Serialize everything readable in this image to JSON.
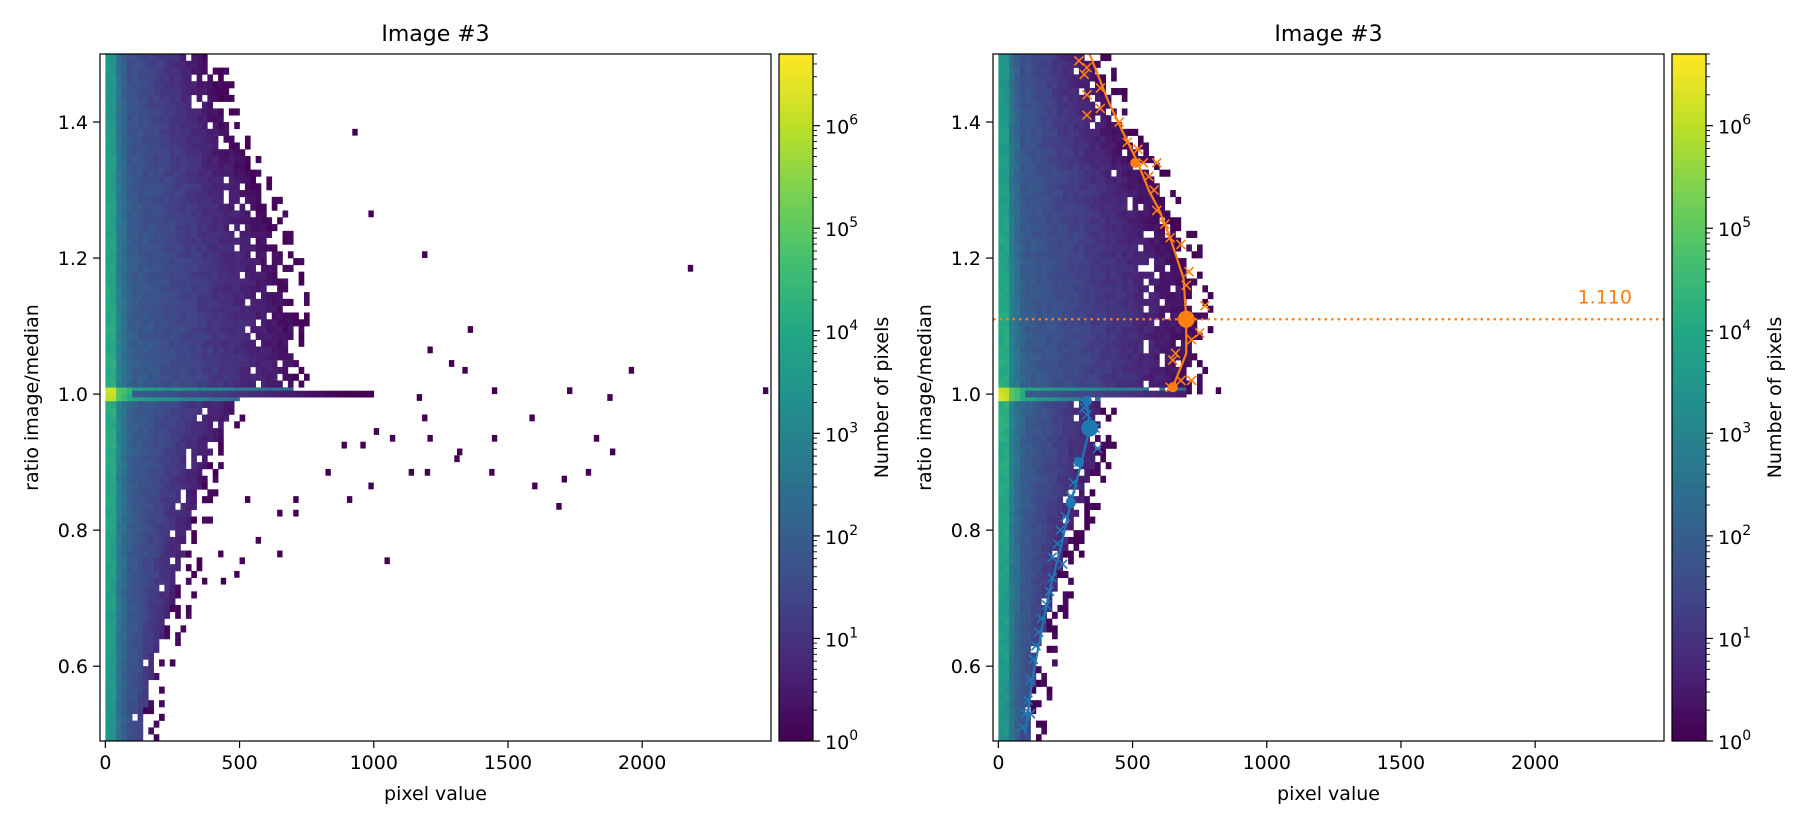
{
  "figure": {
    "panels": [
      {
        "title": "Image #3"
      },
      {
        "title": "Image #3"
      }
    ]
  },
  "chart_data": [
    {
      "type": "heatmap",
      "title": "Image #3",
      "xlabel": "pixel value",
      "ylabel": "ratio image/median",
      "xlim": [
        -20,
        2480
      ],
      "ylim": [
        0.49,
        1.5
      ],
      "xticks": [
        0,
        500,
        1000,
        1500,
        2000
      ],
      "yticks": [
        0.6,
        0.8,
        1.0,
        1.2,
        1.4
      ],
      "ytick_labels": [
        "0.6",
        "0.8",
        "1.0",
        "1.2",
        "1.4"
      ],
      "colorbar": {
        "label": "Number of pixels",
        "scale": "log",
        "range": [
          1,
          5000000
        ],
        "cmap": "viridis",
        "ticks": [
          {
            "base": "10",
            "exp": "0"
          },
          {
            "base": "10",
            "exp": "1"
          },
          {
            "base": "10",
            "exp": "2"
          },
          {
            "base": "10",
            "exp": "3"
          },
          {
            "base": "10",
            "exp": "4"
          },
          {
            "base": "10",
            "exp": "5"
          },
          {
            "base": "10",
            "exp": "6"
          }
        ]
      },
      "density": {
        "ridge_value_above": [
          [
            1.0,
            700
          ],
          [
            1.1,
            700
          ],
          [
            1.2,
            660
          ],
          [
            1.3,
            570
          ],
          [
            1.4,
            450
          ],
          [
            1.5,
            370
          ]
        ],
        "ridge_value_below": [
          [
            0.5,
            130
          ],
          [
            0.6,
            180
          ],
          [
            0.7,
            260
          ],
          [
            0.8,
            310
          ],
          [
            0.9,
            380
          ],
          [
            1.0,
            500
          ]
        ],
        "peak_ratio": 1.0,
        "isolated_bins": [
          [
            920,
            1.38
          ],
          [
            980,
            1.26
          ],
          [
            1180,
            1.2
          ],
          [
            2170,
            1.18
          ],
          [
            1350,
            1.09
          ],
          [
            1200,
            1.06
          ],
          [
            1280,
            1.04
          ],
          [
            1950,
            1.03
          ],
          [
            1330,
            1.03
          ],
          [
            1160,
            0.99
          ],
          [
            1440,
            1.0
          ],
          [
            1720,
            1.0
          ],
          [
            1870,
            0.99
          ],
          [
            2450,
            1.0
          ],
          [
            1000,
            0.94
          ],
          [
            1060,
            0.93
          ],
          [
            1180,
            0.96
          ],
          [
            1200,
            0.93
          ],
          [
            1310,
            0.91
          ],
          [
            1440,
            0.93
          ],
          [
            1580,
            0.96
          ],
          [
            1820,
            0.93
          ],
          [
            1880,
            0.91
          ],
          [
            1300,
            0.9
          ],
          [
            1130,
            0.88
          ],
          [
            1190,
            0.88
          ],
          [
            1430,
            0.88
          ],
          [
            1700,
            0.87
          ],
          [
            1590,
            0.86
          ],
          [
            1790,
            0.88
          ],
          [
            1680,
            0.83
          ],
          [
            1040,
            0.75
          ],
          [
            980,
            0.86
          ],
          [
            950,
            0.92
          ],
          [
            880,
            0.92
          ],
          [
            900,
            0.84
          ],
          [
            820,
            0.88
          ],
          [
            700,
            0.84
          ],
          [
            640,
            0.82
          ],
          [
            560,
            0.78
          ],
          [
            520,
            0.84
          ],
          [
            500,
            0.75
          ],
          [
            480,
            0.73
          ],
          [
            420,
            0.76
          ],
          [
            430,
            0.72
          ],
          [
            360,
            0.72
          ],
          [
            320,
            0.81
          ],
          [
            700,
            0.82
          ],
          [
            640,
            0.76
          ]
        ]
      }
    },
    {
      "type": "heatmap",
      "title": "Image #3",
      "xlabel": "pixel value",
      "ylabel": "ratio image/median",
      "xlim": [
        -20,
        2480
      ],
      "ylim": [
        0.49,
        1.5
      ],
      "xticks": [
        0,
        500,
        1000,
        1500,
        2000
      ],
      "yticks": [
        0.6,
        0.8,
        1.0,
        1.2,
        1.4
      ],
      "ytick_labels": [
        "0.6",
        "0.8",
        "1.0",
        "1.2",
        "1.4"
      ],
      "colorbar": {
        "label": "Number of pixels",
        "scale": "log",
        "range": [
          1,
          5000000
        ],
        "cmap": "viridis",
        "ticks": [
          {
            "base": "10",
            "exp": "0"
          },
          {
            "base": "10",
            "exp": "1"
          },
          {
            "base": "10",
            "exp": "2"
          },
          {
            "base": "10",
            "exp": "3"
          },
          {
            "base": "10",
            "exp": "4"
          },
          {
            "base": "10",
            "exp": "5"
          },
          {
            "base": "10",
            "exp": "6"
          }
        ]
      },
      "density": {
        "ridge_value_above": [
          [
            1.0,
            690
          ],
          [
            1.1,
            740
          ],
          [
            1.2,
            700
          ],
          [
            1.3,
            600
          ],
          [
            1.4,
            450
          ],
          [
            1.5,
            340
          ]
        ],
        "ridge_value_below": [
          [
            0.5,
            110
          ],
          [
            0.6,
            140
          ],
          [
            0.7,
            200
          ],
          [
            0.8,
            270
          ],
          [
            0.9,
            360
          ],
          [
            1.0,
            380
          ]
        ],
        "peak_ratio": 1.0,
        "isolated_bins": [
          [
            810,
            1.0
          ]
        ]
      },
      "series": [
        {
          "color": "#ff7f0e",
          "line": [
            [
              650,
              1.01
            ],
            [
              700,
              1.06
            ],
            [
              700,
              1.11
            ],
            [
              690,
              1.17
            ],
            [
              640,
              1.23
            ],
            [
              600,
              1.27
            ],
            [
              560,
              1.3
            ],
            [
              520,
              1.34
            ],
            [
              470,
              1.38
            ],
            [
              410,
              1.43
            ],
            [
              370,
              1.47
            ],
            [
              340,
              1.5
            ]
          ],
          "crosses": [
            [
              640,
              1.01
            ],
            [
              680,
              1.02
            ],
            [
              720,
              1.02
            ],
            [
              650,
              1.05
            ],
            [
              660,
              1.06
            ],
            [
              720,
              1.08
            ],
            [
              750,
              1.09
            ],
            [
              770,
              1.13
            ],
            [
              700,
              1.16
            ],
            [
              710,
              1.18
            ],
            [
              680,
              1.22
            ],
            [
              640,
              1.23
            ],
            [
              620,
              1.25
            ],
            [
              590,
              1.27
            ],
            [
              580,
              1.3
            ],
            [
              560,
              1.32
            ],
            [
              540,
              1.34
            ],
            [
              590,
              1.34
            ],
            [
              520,
              1.36
            ],
            [
              480,
              1.37
            ],
            [
              450,
              1.4
            ],
            [
              330,
              1.41
            ],
            [
              380,
              1.42
            ],
            [
              330,
              1.44
            ],
            [
              380,
              1.45
            ],
            [
              320,
              1.47
            ],
            [
              330,
              1.48
            ],
            [
              300,
              1.49
            ]
          ],
          "markers": [
            [
              650,
              1.01
            ],
            [
              700,
              1.11
            ],
            [
              510,
              1.34
            ]
          ],
          "big_marker": [
            700,
            1.11
          ]
        },
        {
          "color": "#1f77b4",
          "line": [
            [
              330,
              0.99
            ],
            [
              340,
              0.95
            ],
            [
              310,
              0.9
            ],
            [
              270,
              0.84
            ],
            [
              230,
              0.77
            ],
            [
              190,
              0.71
            ],
            [
              160,
              0.65
            ],
            [
              130,
              0.59
            ],
            [
              110,
              0.53
            ],
            [
              100,
              0.5
            ]
          ],
          "crosses": [
            [
              320,
              0.98
            ],
            [
              330,
              0.97
            ],
            [
              360,
              0.95
            ],
            [
              370,
              0.92
            ],
            [
              300,
              0.9
            ],
            [
              280,
              0.87
            ],
            [
              270,
              0.85
            ],
            [
              250,
              0.82
            ],
            [
              230,
              0.8
            ],
            [
              220,
              0.78
            ],
            [
              200,
              0.76
            ],
            [
              240,
              0.75
            ],
            [
              200,
              0.73
            ],
            [
              190,
              0.71
            ],
            [
              180,
              0.69
            ],
            [
              160,
              0.67
            ],
            [
              150,
              0.65
            ],
            [
              140,
              0.63
            ],
            [
              130,
              0.61
            ],
            [
              120,
              0.58
            ],
            [
              110,
              0.55
            ],
            [
              100,
              0.53
            ],
            [
              120,
              0.53
            ],
            [
              90,
              0.51
            ]
          ],
          "markers": [
            [
              330,
              0.99
            ],
            [
              300,
              0.9
            ],
            [
              270,
              0.84
            ]
          ],
          "big_marker": [
            340,
            0.95
          ]
        }
      ],
      "hline": {
        "y": 1.11,
        "label": "1.110",
        "color": "#ff7f0e"
      }
    }
  ]
}
